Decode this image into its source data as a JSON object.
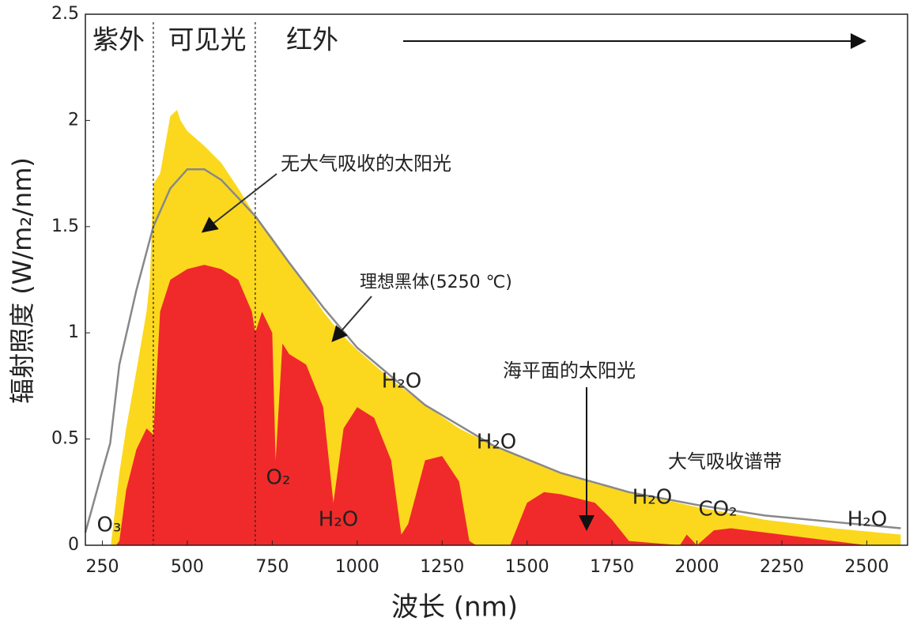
{
  "chart_data": {
    "type": "area",
    "xlabel": "波长 (nm)",
    "ylabel": "辐射照度 (W/m₂/nm)",
    "xlim": [
      200,
      2620
    ],
    "ylim": [
      0,
      2.5
    ],
    "xticks": [
      250,
      500,
      750,
      1000,
      1250,
      1500,
      1750,
      2000,
      2250,
      2500
    ],
    "yticks": [
      0,
      0.5,
      1,
      1.5,
      2,
      2.5
    ],
    "regions": [
      "紫外",
      "可见光",
      "红外"
    ],
    "region_boundaries": [
      400,
      700
    ],
    "annotations": [
      "O₃",
      "O₂",
      "H₂O",
      "H₂O",
      "H₂O",
      "H₂O",
      "H₂O",
      "CO₂",
      "大气吸收谱带"
    ],
    "series": [
      {
        "name": "无大气吸收的太阳光",
        "color": "#fbd81e",
        "kind": "area",
        "x": [
          275,
          300,
          320,
          350,
          380,
          390,
          400,
          420,
          450,
          470,
          480,
          500,
          550,
          600,
          650,
          700,
          750,
          800,
          850,
          900,
          950,
          1000,
          1100,
          1200,
          1300,
          1400,
          1500,
          1600,
          1700,
          1800,
          2000,
          2200,
          2400,
          2600
        ],
        "values": [
          0,
          0.34,
          0.55,
          0.82,
          1.1,
          1.25,
          1.7,
          1.75,
          2.02,
          2.05,
          2.0,
          1.95,
          1.88,
          1.8,
          1.68,
          1.55,
          1.45,
          1.33,
          1.22,
          1.1,
          1.0,
          0.92,
          0.78,
          0.66,
          0.55,
          0.47,
          0.4,
          0.34,
          0.29,
          0.25,
          0.18,
          0.12,
          0.08,
          0.05
        ]
      },
      {
        "name": "海平面的太阳光",
        "color": "#f02a2a",
        "kind": "area",
        "x": [
          290,
          300,
          320,
          350,
          380,
          400,
          420,
          450,
          500,
          550,
          600,
          650,
          690,
          700,
          720,
          750,
          760,
          780,
          800,
          850,
          900,
          930,
          960,
          1000,
          1050,
          1100,
          1130,
          1150,
          1200,
          1250,
          1300,
          1330,
          1350,
          1450,
          1500,
          1550,
          1600,
          1700,
          1750,
          1800,
          1950,
          1970,
          2000,
          2050,
          2100,
          2300,
          2400,
          2500
        ],
        "values": [
          0,
          0.02,
          0.26,
          0.45,
          0.55,
          0.52,
          1.1,
          1.25,
          1.3,
          1.32,
          1.3,
          1.25,
          1.1,
          1.0,
          1.1,
          1.0,
          0.4,
          0.95,
          0.9,
          0.85,
          0.65,
          0.2,
          0.55,
          0.65,
          0.6,
          0.4,
          0.05,
          0.1,
          0.4,
          0.42,
          0.3,
          0.02,
          0,
          0,
          0.2,
          0.25,
          0.24,
          0.2,
          0.12,
          0.02,
          0,
          0.05,
          0,
          0.07,
          0.08,
          0.04,
          0.02,
          0
        ]
      },
      {
        "name": "理想黑体(5250 ℃)",
        "color": "#888888",
        "kind": "line",
        "x": [
          200,
          250,
          273,
          300,
          350,
          400,
          450,
          500,
          550,
          600,
          700,
          800,
          900,
          1000,
          1200,
          1400,
          1600,
          1800,
          2000,
          2200,
          2400,
          2600
        ],
        "values": [
          0.06,
          0.35,
          0.48,
          0.85,
          1.2,
          1.5,
          1.68,
          1.77,
          1.77,
          1.72,
          1.55,
          1.33,
          1.12,
          0.93,
          0.66,
          0.47,
          0.34,
          0.25,
          0.19,
          0.14,
          0.11,
          0.08
        ]
      }
    ]
  }
}
